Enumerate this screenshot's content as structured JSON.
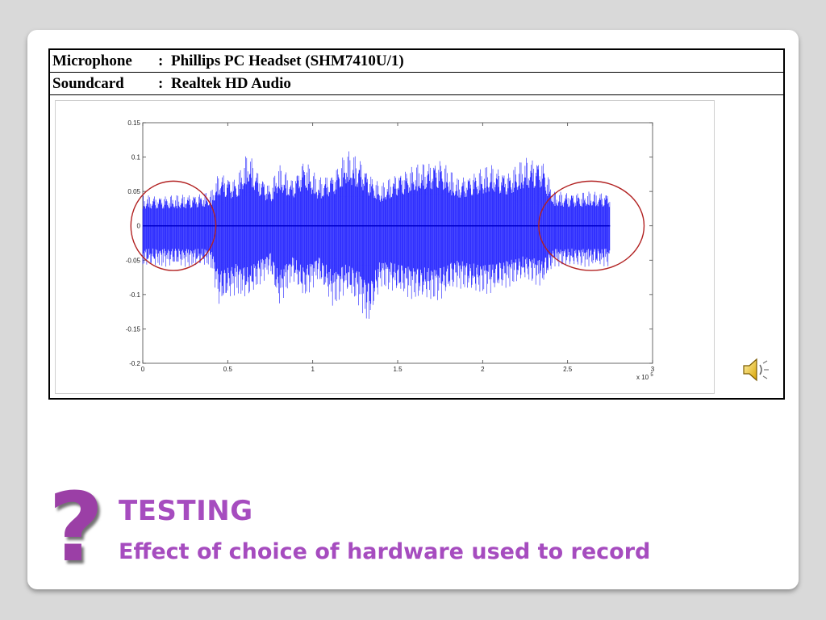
{
  "hardware": {
    "rows": [
      {
        "label": "Microphone",
        "separator": ":",
        "value": "Phillips PC Headset (SHM7410U/1)"
      },
      {
        "label": "Soundcard",
        "separator": ":",
        "value": "Realtek HD Audio"
      }
    ]
  },
  "chart_data": {
    "type": "line",
    "title": "",
    "xlabel": "",
    "ylabel": "",
    "x_range": [
      0,
      3
    ],
    "x_multiplier_label": "x 10",
    "x_multiplier_exponent": "5",
    "ylim": [
      -0.2,
      0.15
    ],
    "x_ticks": [
      "0",
      "0.5",
      "1",
      "1.5",
      "2",
      "2.5",
      "3"
    ],
    "y_ticks": [
      "0.15",
      "0.1",
      "0.05",
      "0",
      "-0.05",
      "-0.1",
      "-0.15",
      "-0.2"
    ],
    "grid": false,
    "series_color": "#1a1aff",
    "envelope": [
      {
        "x": 0.0,
        "hi": 0.045,
        "lo": -0.06
      },
      {
        "x": 0.2,
        "hi": 0.045,
        "lo": -0.06
      },
      {
        "x": 0.4,
        "hi": 0.05,
        "lo": -0.06
      },
      {
        "x": 0.45,
        "hi": 0.08,
        "lo": -0.12
      },
      {
        "x": 0.55,
        "hi": 0.07,
        "lo": -0.1
      },
      {
        "x": 0.62,
        "hi": 0.11,
        "lo": -0.11
      },
      {
        "x": 0.68,
        "hi": 0.08,
        "lo": -0.09
      },
      {
        "x": 0.75,
        "hi": 0.06,
        "lo": -0.07
      },
      {
        "x": 0.8,
        "hi": 0.09,
        "lo": -0.12
      },
      {
        "x": 0.88,
        "hi": 0.07,
        "lo": -0.08
      },
      {
        "x": 0.95,
        "hi": 0.1,
        "lo": -0.11
      },
      {
        "x": 1.03,
        "hi": 0.07,
        "lo": -0.08
      },
      {
        "x": 1.12,
        "hi": 0.08,
        "lo": -0.12
      },
      {
        "x": 1.2,
        "hi": 0.11,
        "lo": -0.1
      },
      {
        "x": 1.28,
        "hi": 0.1,
        "lo": -0.12
      },
      {
        "x": 1.33,
        "hi": 0.08,
        "lo": -0.15
      },
      {
        "x": 1.4,
        "hi": 0.06,
        "lo": -0.09
      },
      {
        "x": 1.5,
        "hi": 0.08,
        "lo": -0.1
      },
      {
        "x": 1.62,
        "hi": 0.09,
        "lo": -0.11
      },
      {
        "x": 1.75,
        "hi": 0.1,
        "lo": -0.11
      },
      {
        "x": 1.85,
        "hi": 0.07,
        "lo": -0.09
      },
      {
        "x": 1.95,
        "hi": 0.08,
        "lo": -0.1
      },
      {
        "x": 2.05,
        "hi": 0.09,
        "lo": -0.1
      },
      {
        "x": 2.15,
        "hi": 0.08,
        "lo": -0.09
      },
      {
        "x": 2.25,
        "hi": 0.1,
        "lo": -0.08
      },
      {
        "x": 2.35,
        "hi": 0.1,
        "lo": -0.09
      },
      {
        "x": 2.42,
        "hi": 0.05,
        "lo": -0.06
      },
      {
        "x": 2.6,
        "hi": 0.05,
        "lo": -0.06
      },
      {
        "x": 2.75,
        "hi": 0.05,
        "lo": -0.06
      }
    ],
    "annotations": [
      {
        "type": "ellipse",
        "x_center": 0.18,
        "y_center": 0.0,
        "x_radius": 0.25,
        "y_radius": 0.065,
        "color": "#b22222"
      },
      {
        "type": "ellipse",
        "x_center": 2.64,
        "y_center": 0.0,
        "x_radius": 0.31,
        "y_radius": 0.065,
        "color": "#b22222"
      }
    ]
  },
  "speaker_icon": "speaker-icon",
  "question_mark": "?",
  "title": "TESTING",
  "subtitle": "Effect of choice of hardware used to record",
  "colors": {
    "accent": "#a64cbf",
    "question": "#9b3fa6",
    "waveform": "#1a1aff",
    "circle": "#b22222"
  }
}
